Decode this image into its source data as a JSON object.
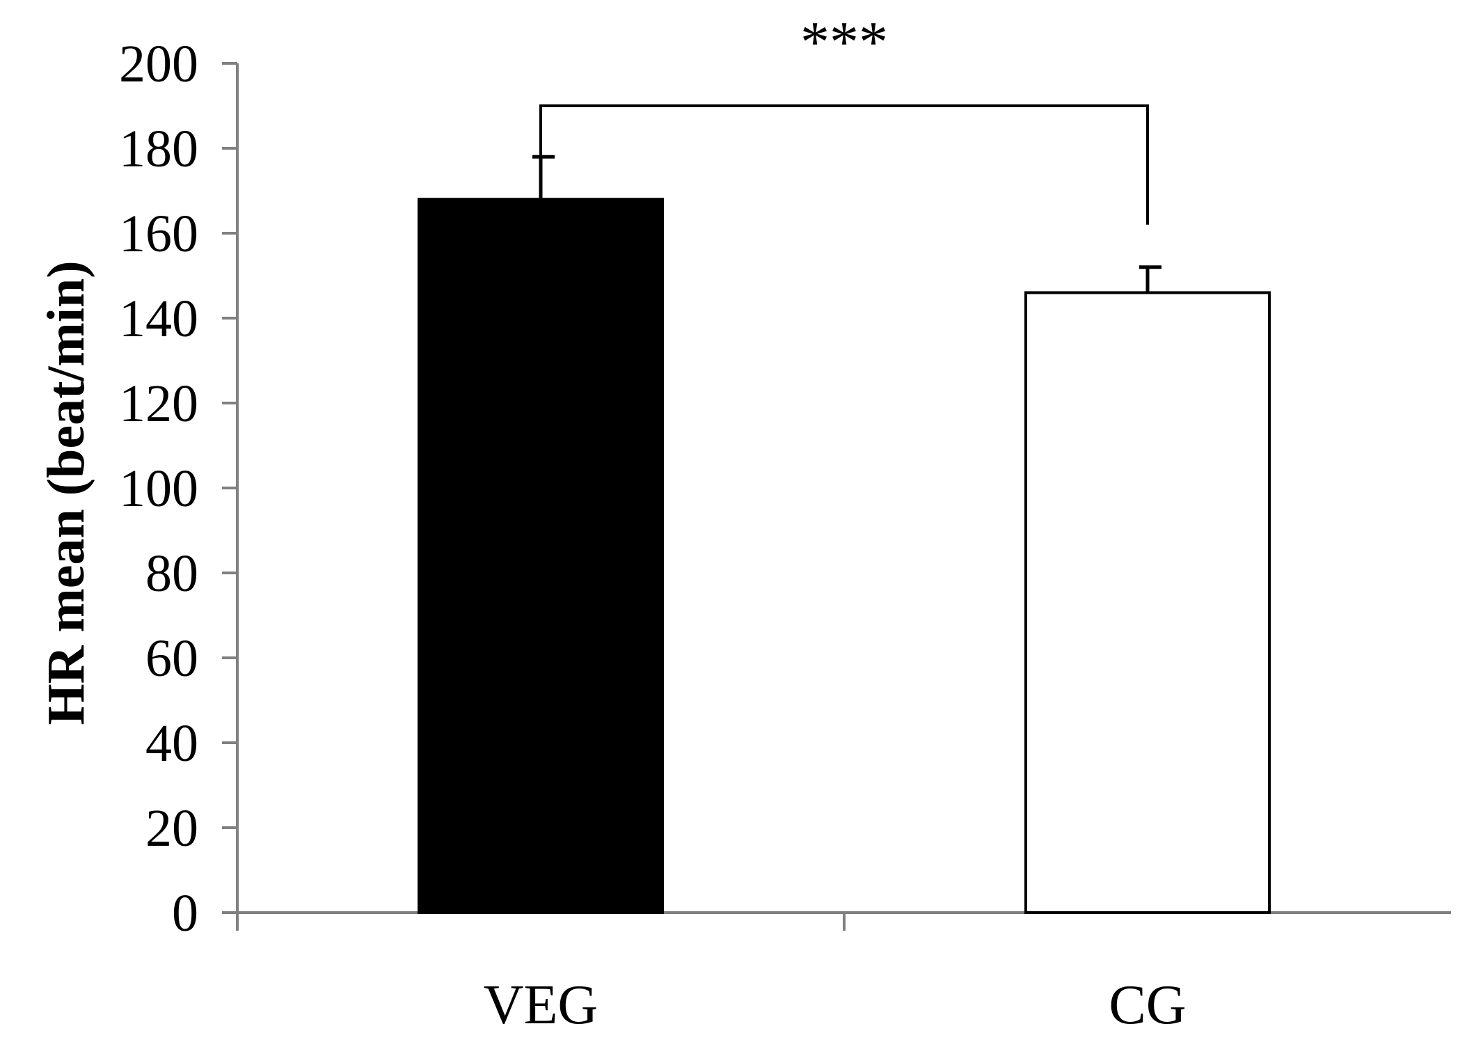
{
  "chart_data": {
    "type": "bar",
    "categories": [
      "VEG",
      "CG"
    ],
    "values": [
      168,
      146
    ],
    "errors": [
      10,
      6
    ],
    "bar_fill": [
      "#000000",
      "#ffffff"
    ],
    "bar_stroke": "#000000",
    "axis_color": "#808080",
    "title": "",
    "xlabel": "",
    "ylabel": "HR mean (beat/min)",
    "ylim": [
      0,
      200
    ],
    "yticks": [
      0,
      20,
      40,
      60,
      80,
      100,
      120,
      140,
      160,
      180,
      200
    ],
    "grid": false,
    "significance": {
      "label": "***",
      "between": [
        0,
        1
      ],
      "bracket_top": 190,
      "left_end": 178,
      "right_end": 162
    }
  }
}
